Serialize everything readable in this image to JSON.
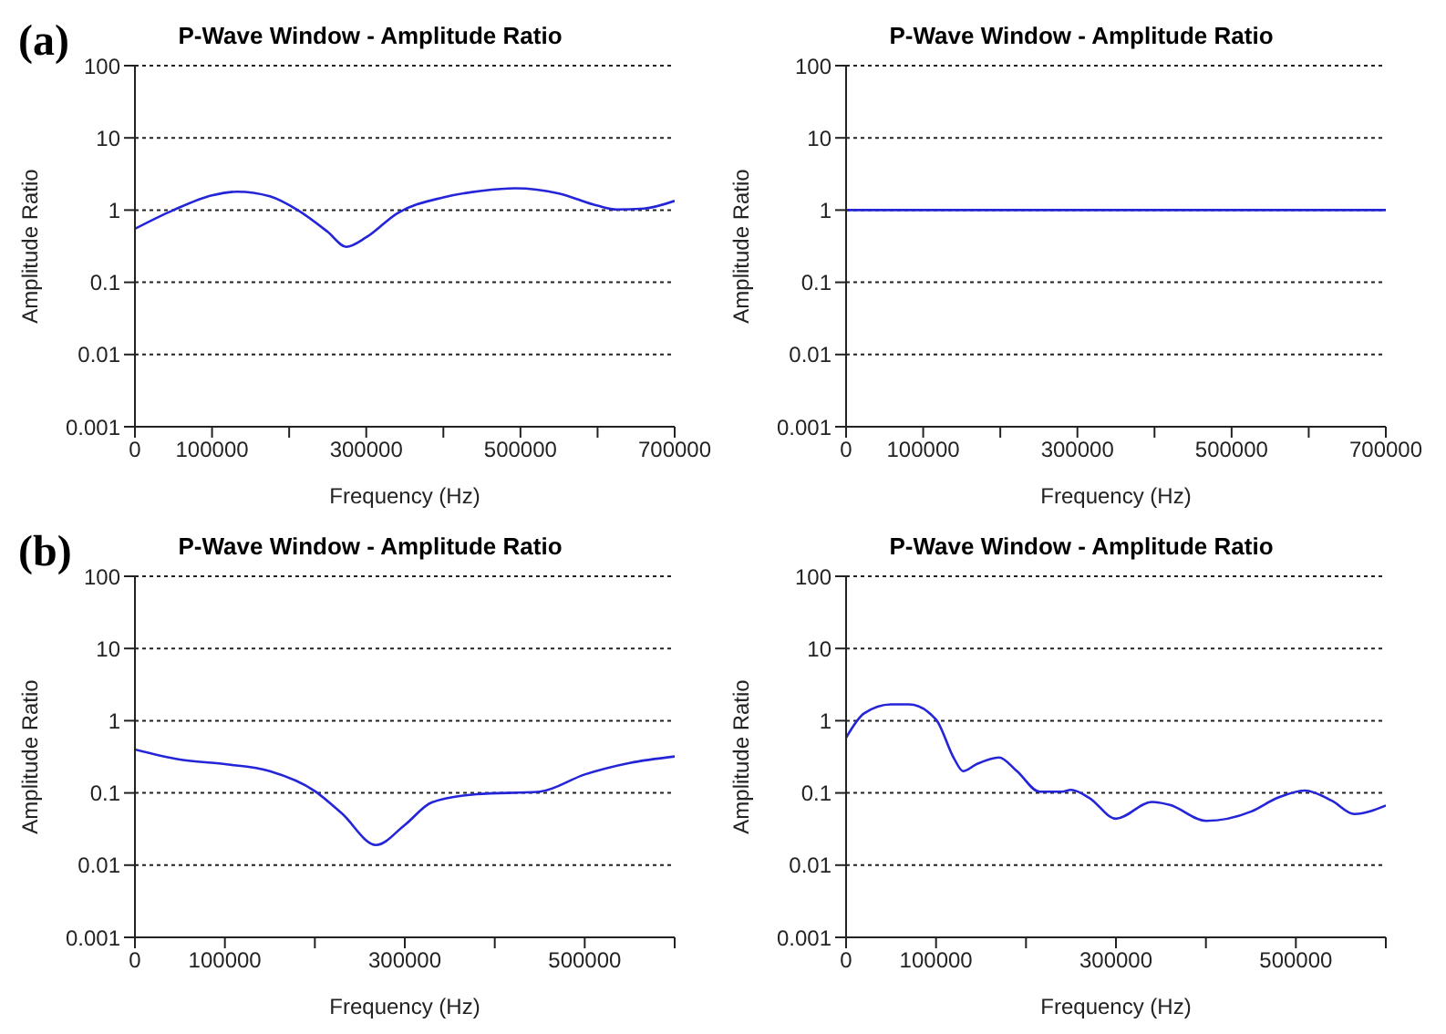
{
  "chart_data": [
    {
      "type": "line",
      "title": "P-Wave Window - Amplitude Ratio",
      "xlabel": "Frequency (Hz)",
      "ylabel": "Amplitude Ratio",
      "annotations": [
        "(a)"
      ],
      "log": "y",
      "grid": "y",
      "xlim": [
        0,
        700000
      ],
      "xticks": [
        0,
        100000,
        {
          "value": 200000,
          "label": null
        },
        300000,
        {
          "value": 400000,
          "label": null
        },
        500000,
        {
          "value": 600000,
          "label": null
        },
        700000
      ],
      "ylim": [
        0.001,
        100
      ],
      "yticks": [
        0.001,
        0.01,
        0.1,
        1,
        10,
        100
      ],
      "series": [
        {
          "color": "#2424d8",
          "x": [
            0,
            50000,
            100000,
            133000,
            175000,
            211000,
            250000,
            274000,
            300000,
            340000,
            400000,
            450000,
            493000,
            550000,
            600000,
            625000,
            660000,
            700000
          ],
          "values": [
            0.55,
            1.0,
            1.6,
            1.8,
            1.55,
            1.0,
            0.5,
            0.31,
            0.42,
            0.9,
            1.5,
            1.85,
            2.0,
            1.7,
            1.15,
            1.02,
            1.05,
            1.34
          ]
        }
      ]
    },
    {
      "type": "line",
      "title": "P-Wave Window - Amplitude Ratio",
      "xlabel": "Frequency (Hz)",
      "ylabel": "Amplitude Ratio",
      "log": "y",
      "grid": "y",
      "xlim": [
        0,
        700000
      ],
      "xticks": [
        0,
        100000,
        {
          "value": 200000,
          "label": null
        },
        300000,
        {
          "value": 400000,
          "label": null
        },
        500000,
        {
          "value": 600000,
          "label": null
        },
        700000
      ],
      "ylim": [
        0.001,
        100
      ],
      "yticks": [
        0.001,
        0.01,
        0.1,
        1,
        10,
        100
      ],
      "series": [
        {
          "color": "#2424d8",
          "x": [
            0,
            350000,
            700000
          ],
          "values": [
            1,
            1,
            1
          ]
        }
      ]
    },
    {
      "type": "line",
      "title": "P-Wave Window - Amplitude Ratio",
      "xlabel": "Frequency (Hz)",
      "ylabel": "Amplitude Ratio",
      "annotations": [
        "(b)"
      ],
      "log": "y",
      "grid": "y",
      "xlim": [
        0,
        600000
      ],
      "xticks": [
        0,
        100000,
        {
          "value": 200000,
          "label": null
        },
        300000,
        {
          "value": 400000,
          "label": null
        },
        500000,
        {
          "value": 600000,
          "label": null
        }
      ],
      "ylim": [
        0.001,
        100
      ],
      "yticks": [
        0.001,
        0.01,
        0.1,
        1,
        10,
        100
      ],
      "series": [
        {
          "color": "#2424d8",
          "x": [
            0,
            50000,
            100000,
            150000,
            200000,
            230000,
            268000,
            300000,
            330000,
            380000,
            450000,
            500000,
            550000,
            600000
          ],
          "values": [
            0.4,
            0.29,
            0.25,
            0.2,
            0.106,
            0.052,
            0.019,
            0.036,
            0.074,
            0.096,
            0.104,
            0.18,
            0.26,
            0.32
          ]
        }
      ]
    },
    {
      "type": "line",
      "title": "P-Wave Window - Amplitude Ratio",
      "xlabel": "Frequency (Hz)",
      "ylabel": "Amplitude Ratio",
      "log": "y",
      "grid": "y",
      "xlim": [
        0,
        600000
      ],
      "xticks": [
        0,
        100000,
        {
          "value": 200000,
          "label": null
        },
        300000,
        {
          "value": 400000,
          "label": null
        },
        500000,
        {
          "value": 600000,
          "label": null
        }
      ],
      "ylim": [
        0.001,
        100
      ],
      "yticks": [
        0.001,
        0.01,
        0.1,
        1,
        10,
        100
      ],
      "series": [
        {
          "color": "#2424d8",
          "x": [
            0,
            20000,
            50000,
            70000,
            100000,
            120000,
            130000,
            145000,
            170000,
            190000,
            215000,
            240000,
            250000,
            270000,
            300000,
            340000,
            360000,
            400000,
            450000,
            480000,
            510000,
            540000,
            565000,
            600000
          ],
          "values": [
            0.58,
            1.26,
            1.68,
            1.68,
            1.04,
            0.3,
            0.2,
            0.25,
            0.31,
            0.2,
            0.104,
            0.104,
            0.11,
            0.086,
            0.044,
            0.075,
            0.068,
            0.041,
            0.055,
            0.086,
            0.108,
            0.078,
            0.051,
            0.067
          ]
        }
      ]
    }
  ]
}
